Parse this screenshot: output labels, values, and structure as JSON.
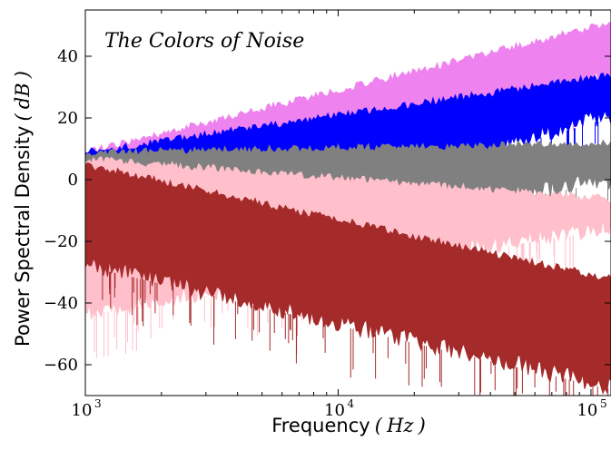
{
  "chart_data": {
    "type": "area",
    "title": "The Colors of Noise",
    "xlabel": {
      "text": "Frequency",
      "unit": "Hz"
    },
    "ylabel": {
      "text": "Power Spectral Density",
      "unit": "dB"
    },
    "x_scale": "log",
    "xlim": [
      1000,
      120000
    ],
    "ylim": [
      -70,
      55
    ],
    "x_ticks": [
      {
        "value": 1000,
        "base": "10",
        "exp": "3"
      },
      {
        "value": 10000,
        "base": "10",
        "exp": "4"
      },
      {
        "value": 100000,
        "base": "10",
        "exp": "5"
      }
    ],
    "y_ticks": [
      {
        "value": 40,
        "label": "40"
      },
      {
        "value": 20,
        "label": "20"
      },
      {
        "value": 0,
        "label": "0"
      },
      {
        "value": -20,
        "label": "−20"
      },
      {
        "value": -40,
        "label": "−40"
      },
      {
        "value": -60,
        "label": "−60"
      }
    ],
    "grid": false,
    "legend": "none",
    "series": [
      {
        "color": "#ee82ee",
        "x": [
          1000,
          120000
        ],
        "upper": [
          10,
          52
        ],
        "lower": [
          -15,
          30
        ]
      },
      {
        "color": "#0000ff",
        "x": [
          1000,
          120000
        ],
        "upper": [
          10,
          35
        ],
        "lower": [
          -30,
          18
        ]
      },
      {
        "color": "#808080",
        "x": [
          1000,
          120000
        ],
        "upper": [
          10,
          13
        ],
        "lower": [
          -30,
          -3
        ]
      },
      {
        "color": "#ffc0cb",
        "x": [
          1000,
          120000
        ],
        "upper": [
          8,
          -5
        ],
        "lower": [
          -46,
          -18
        ]
      },
      {
        "color": "#a52a2a",
        "x": [
          1000,
          120000
        ],
        "upper": [
          6,
          -31
        ],
        "lower": [
          -30,
          -70
        ]
      }
    ]
  }
}
